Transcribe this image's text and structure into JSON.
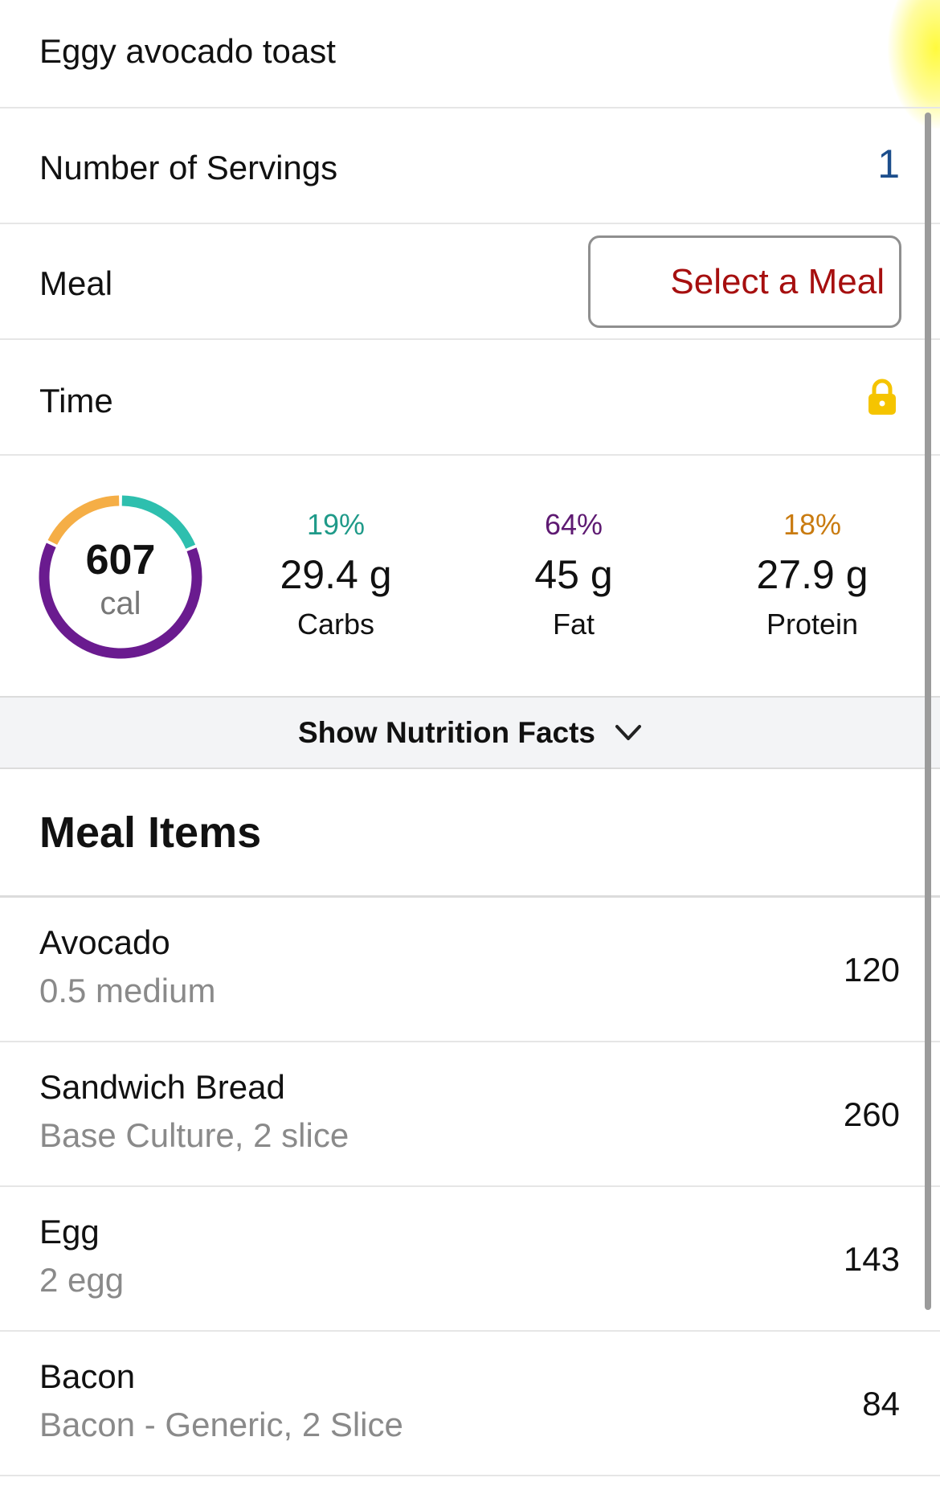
{
  "title": "Eggy avocado toast",
  "servings": {
    "label": "Number of Servings",
    "value": "1"
  },
  "meal": {
    "label": "Meal",
    "button_label": "Select a Meal"
  },
  "time": {
    "label": "Time",
    "icon": "lock-icon"
  },
  "calories": {
    "value": "607",
    "unit": "cal",
    "ring_colors": {
      "carbs": "#2ebfae",
      "fat": "#6a1b8f",
      "protein": "#f5ae46"
    },
    "ring_fractions": {
      "carbs": 0.19,
      "fat": 0.64,
      "protein": 0.18
    }
  },
  "macros": {
    "carbs": {
      "pct": "19%",
      "amount": "29.4 g",
      "name": "Carbs"
    },
    "fat": {
      "pct": "64%",
      "amount": "45 g",
      "name": "Fat"
    },
    "protein": {
      "pct": "18%",
      "amount": "27.9 g",
      "name": "Protein"
    }
  },
  "nutrition_facts": {
    "label": "Show Nutrition Facts",
    "icon": "chevron-down-icon"
  },
  "meal_items": {
    "title": "Meal Items",
    "items": [
      {
        "name": "Avocado",
        "description": "0.5 medium",
        "calories": "120"
      },
      {
        "name": "Sandwich Bread",
        "description": "Base Culture, 2 slice",
        "calories": "260"
      },
      {
        "name": "Egg",
        "description": "2 egg",
        "calories": "143"
      },
      {
        "name": "Bacon",
        "description": "Bacon - Generic, 2 Slice",
        "calories": "84"
      }
    ]
  }
}
